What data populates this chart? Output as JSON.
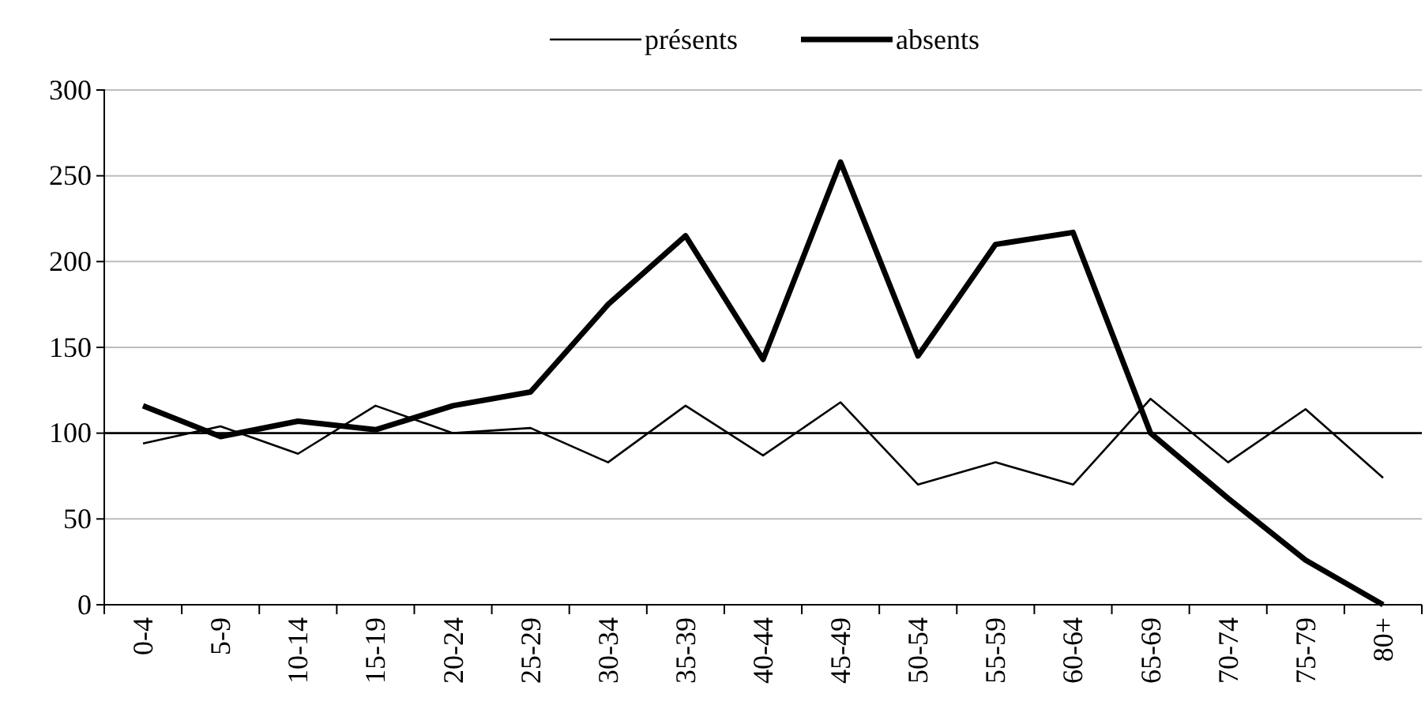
{
  "chart_data": {
    "type": "line",
    "categories": [
      "0-4",
      "5-9",
      "10-14",
      "15-19",
      "20-24",
      "25-29",
      "30-34",
      "35-39",
      "40-44",
      "45-49",
      "50-54",
      "55-59",
      "60-64",
      "65-69",
      "70-74",
      "75-79",
      "80+"
    ],
    "series": [
      {
        "name": "présents",
        "color": "#000000",
        "values": [
          94,
          104,
          88,
          116,
          100,
          103,
          83,
          116,
          87,
          118,
          70,
          83,
          70,
          120,
          83,
          114,
          74
        ]
      },
      {
        "name": "absents",
        "color": "#000000",
        "values": [
          116,
          98,
          107,
          102,
          116,
          124,
          175,
          215,
          143,
          258,
          145,
          210,
          217,
          100,
          62,
          26,
          0
        ]
      }
    ],
    "ylim": [
      0,
      300
    ],
    "yticks": [
      0,
      50,
      100,
      150,
      200,
      250,
      300
    ],
    "grid": "y",
    "legend": "top",
    "marker": "none",
    "line_style": "solid",
    "ref_lines": [
      {
        "axis": "y",
        "value": 100,
        "color": "#000000"
      }
    ]
  }
}
